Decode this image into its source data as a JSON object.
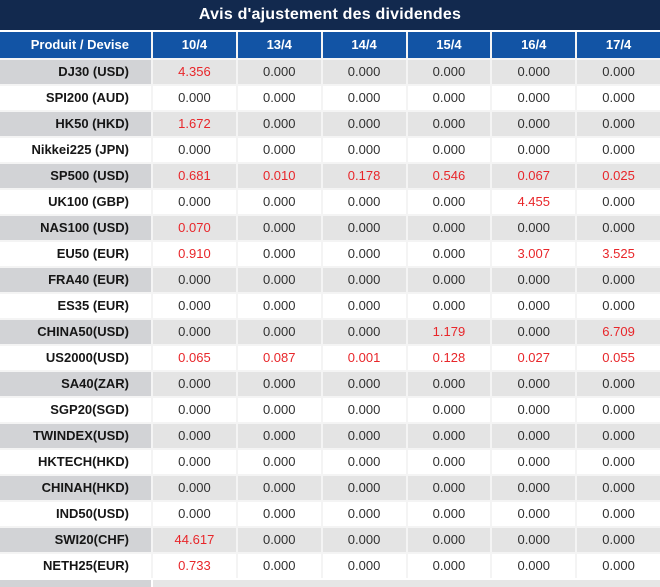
{
  "title": "Avis d'ajustement des dividendes",
  "table": {
    "product_header": "Produit / Devise",
    "date_headers": [
      "10/4",
      "13/4",
      "14/4",
      "15/4",
      "16/4",
      "17/4"
    ],
    "rows": [
      {
        "product": "DJ30 (USD)",
        "values": [
          "4.356",
          "0.000",
          "0.000",
          "0.000",
          "0.000",
          "0.000"
        ],
        "red": [
          true,
          false,
          false,
          false,
          false,
          false
        ]
      },
      {
        "product": "SPI200 (AUD)",
        "values": [
          "0.000",
          "0.000",
          "0.000",
          "0.000",
          "0.000",
          "0.000"
        ],
        "red": [
          false,
          false,
          false,
          false,
          false,
          false
        ]
      },
      {
        "product": "HK50 (HKD)",
        "values": [
          "1.672",
          "0.000",
          "0.000",
          "0.000",
          "0.000",
          "0.000"
        ],
        "red": [
          true,
          false,
          false,
          false,
          false,
          false
        ]
      },
      {
        "product": "Nikkei225 (JPN)",
        "values": [
          "0.000",
          "0.000",
          "0.000",
          "0.000",
          "0.000",
          "0.000"
        ],
        "red": [
          false,
          false,
          false,
          false,
          false,
          false
        ]
      },
      {
        "product": "SP500 (USD)",
        "values": [
          "0.681",
          "0.010",
          "0.178",
          "0.546",
          "0.067",
          "0.025"
        ],
        "red": [
          true,
          true,
          true,
          true,
          true,
          true
        ]
      },
      {
        "product": "UK100 (GBP)",
        "values": [
          "0.000",
          "0.000",
          "0.000",
          "0.000",
          "4.455",
          "0.000"
        ],
        "red": [
          false,
          false,
          false,
          false,
          true,
          false
        ]
      },
      {
        "product": "NAS100 (USD)",
        "values": [
          "0.070",
          "0.000",
          "0.000",
          "0.000",
          "0.000",
          "0.000"
        ],
        "red": [
          true,
          false,
          false,
          false,
          false,
          false
        ]
      },
      {
        "product": "EU50 (EUR)",
        "values": [
          "0.910",
          "0.000",
          "0.000",
          "0.000",
          "3.007",
          "3.525"
        ],
        "red": [
          true,
          false,
          false,
          false,
          true,
          true
        ]
      },
      {
        "product": "FRA40 (EUR)",
        "values": [
          "0.000",
          "0.000",
          "0.000",
          "0.000",
          "0.000",
          "0.000"
        ],
        "red": [
          false,
          false,
          false,
          false,
          false,
          false
        ]
      },
      {
        "product": "ES35 (EUR)",
        "values": [
          "0.000",
          "0.000",
          "0.000",
          "0.000",
          "0.000",
          "0.000"
        ],
        "red": [
          false,
          false,
          false,
          false,
          false,
          false
        ]
      },
      {
        "product": "CHINA50(USD)",
        "values": [
          "0.000",
          "0.000",
          "0.000",
          "1.179",
          "0.000",
          "6.709"
        ],
        "red": [
          false,
          false,
          false,
          true,
          false,
          true
        ]
      },
      {
        "product": "US2000(USD)",
        "values": [
          "0.065",
          "0.087",
          "0.001",
          "0.128",
          "0.027",
          "0.055"
        ],
        "red": [
          true,
          true,
          true,
          true,
          true,
          true
        ]
      },
      {
        "product": "SA40(ZAR)",
        "values": [
          "0.000",
          "0.000",
          "0.000",
          "0.000",
          "0.000",
          "0.000"
        ],
        "red": [
          false,
          false,
          false,
          false,
          false,
          false
        ]
      },
      {
        "product": "SGP20(SGD)",
        "values": [
          "0.000",
          "0.000",
          "0.000",
          "0.000",
          "0.000",
          "0.000"
        ],
        "red": [
          false,
          false,
          false,
          false,
          false,
          false
        ]
      },
      {
        "product": "TWINDEX(USD)",
        "values": [
          "0.000",
          "0.000",
          "0.000",
          "0.000",
          "0.000",
          "0.000"
        ],
        "red": [
          false,
          false,
          false,
          false,
          false,
          false
        ]
      },
      {
        "product": "HKTECH(HKD)",
        "values": [
          "0.000",
          "0.000",
          "0.000",
          "0.000",
          "0.000",
          "0.000"
        ],
        "red": [
          false,
          false,
          false,
          false,
          false,
          false
        ]
      },
      {
        "product": "CHINAH(HKD)",
        "values": [
          "0.000",
          "0.000",
          "0.000",
          "0.000",
          "0.000",
          "0.000"
        ],
        "red": [
          false,
          false,
          false,
          false,
          false,
          false
        ]
      },
      {
        "product": "IND50(USD)",
        "values": [
          "0.000",
          "0.000",
          "0.000",
          "0.000",
          "0.000",
          "0.000"
        ],
        "red": [
          false,
          false,
          false,
          false,
          false,
          false
        ]
      },
      {
        "product": "SWI20(CHF)",
        "values": [
          "44.617",
          "0.000",
          "0.000",
          "0.000",
          "0.000",
          "0.000"
        ],
        "red": [
          true,
          false,
          false,
          false,
          false,
          false
        ]
      },
      {
        "product": "NETH25(EUR)",
        "values": [
          "0.733",
          "0.000",
          "0.000",
          "0.000",
          "0.000",
          "0.000"
        ],
        "red": [
          true,
          false,
          false,
          false,
          false,
          false
        ]
      }
    ]
  },
  "colors": {
    "title_bg": "#12294E",
    "header_bg": "#1254A5",
    "stripe_product_bg": "#D2D3D6",
    "stripe_value_bg": "#E4E4E4",
    "red_value": "#E8262A",
    "value_text": "#303030",
    "header_text": "#FFFFFF"
  }
}
